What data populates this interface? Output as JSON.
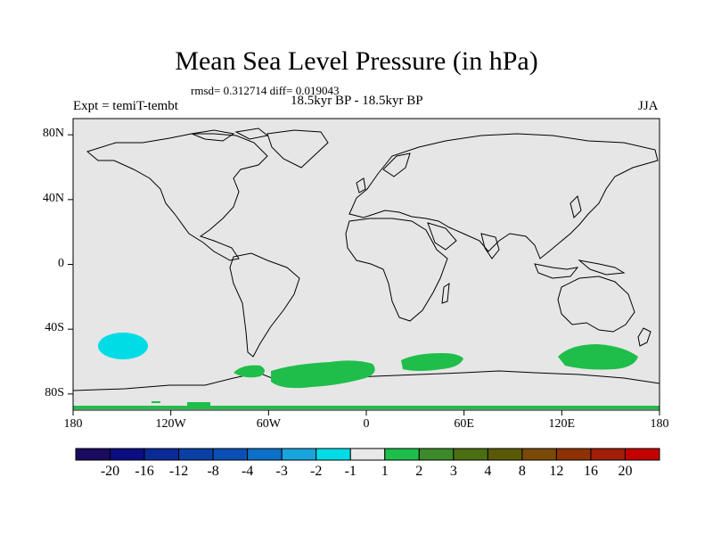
{
  "header": {
    "title": "Mean Sea Level Pressure (in hPa)",
    "stats": "rmsd= 0.312714 diff= 0.019043",
    "experiment": "Expt = temiT-tembt",
    "period": "18.5kyr BP - 18.5kyr BP",
    "season": "JJA"
  },
  "axes": {
    "lat_ticks": [
      {
        "value": 80,
        "label": "80N"
      },
      {
        "value": 40,
        "label": "40N"
      },
      {
        "value": 0,
        "label": "0"
      },
      {
        "value": -40,
        "label": "40S"
      },
      {
        "value": -80,
        "label": "80S"
      }
    ],
    "lon_ticks": [
      {
        "value": -180,
        "label": "180"
      },
      {
        "value": -120,
        "label": "120W"
      },
      {
        "value": -60,
        "label": "60W"
      },
      {
        "value": 0,
        "label": "0"
      },
      {
        "value": 60,
        "label": "60E"
      },
      {
        "value": 120,
        "label": "120E"
      },
      {
        "value": 180,
        "label": "180"
      }
    ]
  },
  "colorbar": {
    "colors": [
      "#1a0b5e",
      "#0d0d82",
      "#0a2a96",
      "#0a3fa6",
      "#0b4fb5",
      "#0d70c8",
      "#18a4dc",
      "#00dce6",
      "#e8e8e8",
      "#1fbe4b",
      "#3c8a2a",
      "#4c6e12",
      "#5a5a06",
      "#7a4a08",
      "#8e3206",
      "#a11e08",
      "#c40000"
    ],
    "labels": [
      "-20",
      "-16",
      "-12",
      "-8",
      "-4",
      "-3",
      "-2",
      "-1",
      "1",
      "2",
      "3",
      "4",
      "8",
      "12",
      "16",
      "20"
    ]
  },
  "colors": {
    "land_sea_background": "#e6e6e6",
    "coastline": "#000000",
    "negative_anomaly": "#00dce6",
    "positive_anomaly": "#1fbe4b"
  }
}
